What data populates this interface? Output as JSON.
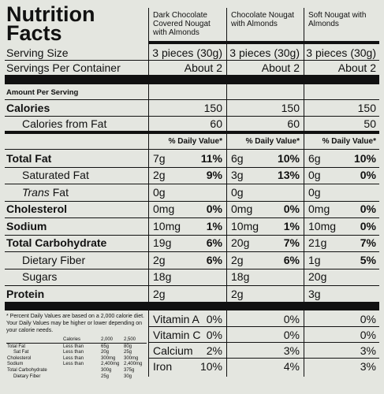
{
  "title": "Nutrition Facts",
  "products": [
    "Dark Chocolate Covered Nougat with Almonds",
    "Chocolate Nougat with Almonds",
    "Soft Nougat with Almonds"
  ],
  "serving_size": {
    "label": "Serving Size",
    "values": [
      "3 pieces (30g)",
      "3 pieces (30g)",
      "3 pieces (30g)"
    ]
  },
  "servings_per_container": {
    "label": "Servings Per Container",
    "values": [
      "About 2",
      "About 2",
      "About 2"
    ]
  },
  "amount_per_serving": "Amount Per Serving",
  "calories": {
    "label": "Calories",
    "values": [
      "150",
      "150",
      "150"
    ]
  },
  "calories_from_fat": {
    "label": "Calories from Fat",
    "values": [
      "60",
      "60",
      "50"
    ]
  },
  "daily_value_header": "% Daily Value*",
  "nutrients": [
    {
      "label": "Total Fat",
      "level": "main",
      "values": [
        {
          "amount": "7g",
          "dv": "11%"
        },
        {
          "amount": "6g",
          "dv": "10%"
        },
        {
          "amount": "6g",
          "dv": "10%"
        }
      ]
    },
    {
      "label": "Saturated Fat",
      "level": "sub",
      "values": [
        {
          "amount": "2g",
          "dv": "9%"
        },
        {
          "amount": "3g",
          "dv": "13%"
        },
        {
          "amount": "0g",
          "dv": "0%"
        }
      ]
    },
    {
      "label_italic": "Trans",
      "label": "Fat",
      "level": "sub",
      "values": [
        {
          "amount": "0g"
        },
        {
          "amount": "0g"
        },
        {
          "amount": "0g"
        }
      ]
    },
    {
      "label": "Cholesterol",
      "level": "main",
      "values": [
        {
          "amount": "0mg",
          "dv": "0%"
        },
        {
          "amount": "0mg",
          "dv": "0%"
        },
        {
          "amount": "0mg",
          "dv": "0%"
        }
      ]
    },
    {
      "label": "Sodium",
      "level": "main",
      "values": [
        {
          "amount": "10mg",
          "dv": "1%"
        },
        {
          "amount": "10mg",
          "dv": "1%"
        },
        {
          "amount": "10mg",
          "dv": "0%"
        }
      ]
    },
    {
      "label": "Total Carbohydrate",
      "level": "main",
      "values": [
        {
          "amount": "19g",
          "dv": "6%"
        },
        {
          "amount": "20g",
          "dv": "7%"
        },
        {
          "amount": "21g",
          "dv": "7%"
        }
      ]
    },
    {
      "label": "Dietary Fiber",
      "level": "sub",
      "values": [
        {
          "amount": "2g",
          "dv": "6%"
        },
        {
          "amount": "2g",
          "dv": "6%"
        },
        {
          "amount": "1g",
          "dv": "5%"
        }
      ]
    },
    {
      "label": "Sugars",
      "level": "sub",
      "values": [
        {
          "amount": "18g"
        },
        {
          "amount": "18g"
        },
        {
          "amount": "20g"
        }
      ]
    },
    {
      "label": "Protein",
      "level": "main",
      "values": [
        {
          "amount": "2g"
        },
        {
          "amount": "2g"
        },
        {
          "amount": "3g"
        }
      ]
    }
  ],
  "vitamins": [
    {
      "label": "Vitamin A",
      "values": [
        "0%",
        "0%",
        "0%"
      ]
    },
    {
      "label": "Vitamin C",
      "values": [
        "0%",
        "0%",
        "0%"
      ]
    },
    {
      "label": "Calcium",
      "values": [
        "2%",
        "3%",
        "3%"
      ]
    },
    {
      "label": "Iron",
      "values": [
        "10%",
        "4%",
        "3%"
      ]
    }
  ],
  "footnote": {
    "text": "* Percent Daily Values are based on a 2,000 calorie diet. Your Daily Values may be higher or lower depending on your calorie needs.",
    "table": {
      "header": {
        "calories": "Calories",
        "values": [
          "2,000",
          "2,500"
        ]
      },
      "rows": [
        {
          "nutrient": "Total Fat",
          "limit": "Less than",
          "values": [
            "65g",
            "80g"
          ]
        },
        {
          "nutrient": "Sat Fat",
          "indent": true,
          "limit": "Less than",
          "values": [
            "20g",
            "25g"
          ]
        },
        {
          "nutrient": "Cholesterol",
          "limit": "Less than",
          "values": [
            "300mg",
            "300mg"
          ]
        },
        {
          "nutrient": "Sodium",
          "limit": "Less than",
          "values": [
            "2,400mg",
            "2,400mg"
          ]
        },
        {
          "nutrient": "Total Carbohydrate",
          "values": [
            "300g",
            "375g"
          ]
        },
        {
          "nutrient": "Dietary Fiber",
          "indent": true,
          "values": [
            "25g",
            "30g"
          ]
        }
      ]
    }
  }
}
